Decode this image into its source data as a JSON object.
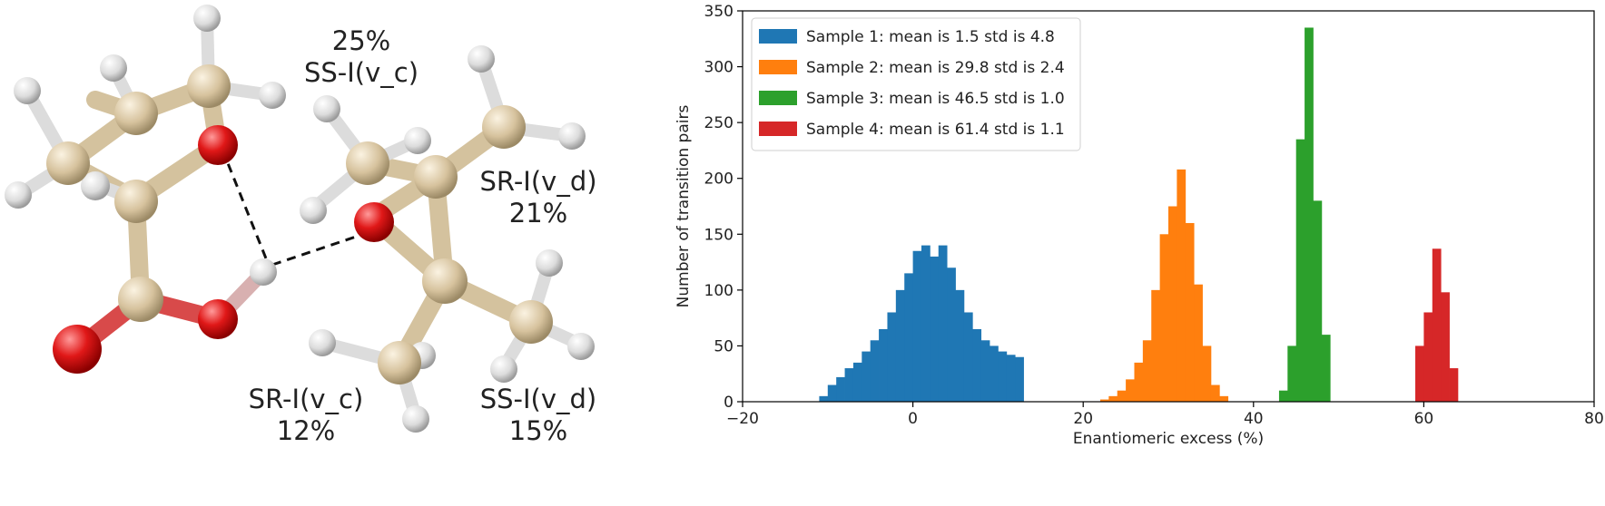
{
  "molecule": {
    "labels": [
      {
        "id": "ss-c-pct",
        "text": "25%"
      },
      {
        "id": "ss-c",
        "text": "SS-I(v_c)"
      },
      {
        "id": "sr-d",
        "text": "SR-I(v_d)"
      },
      {
        "id": "sr-d-pct",
        "text": "21%"
      },
      {
        "id": "sr-c",
        "text": "SR-I(v_c)"
      },
      {
        "id": "sr-c-pct",
        "text": "12%"
      },
      {
        "id": "ss-d",
        "text": "SS-I(v_d)"
      },
      {
        "id": "ss-d-pct",
        "text": "15%"
      }
    ],
    "colors": {
      "carbon": "#d9c5a0",
      "oxygen": "#e01818",
      "hydrogen": "#e2e2e2",
      "hbond": "#111111"
    }
  },
  "chart_data": {
    "type": "histogram",
    "xlabel": "Enantiomeric excess (%)",
    "ylabel": "Number of transition pairs",
    "xlim": [
      -20,
      80
    ],
    "ylim": [
      0,
      350
    ],
    "xticks": [
      -20,
      0,
      20,
      40,
      60,
      80
    ],
    "yticks": [
      0,
      50,
      100,
      150,
      200,
      250,
      300,
      350
    ],
    "legend_position": "top-left",
    "grid": false,
    "series": [
      {
        "name": "Sample 1: mean is 1.5 std is 4.8",
        "color": "#1f77b4",
        "bin_edges": [
          -11,
          -10,
          -9,
          -8,
          -7,
          -6,
          -5,
          -4,
          -3,
          -2,
          -1,
          0,
          1,
          2,
          3,
          4,
          5,
          6,
          7,
          8,
          9,
          10,
          11,
          12,
          13
        ],
        "counts": [
          5,
          15,
          22,
          30,
          35,
          45,
          55,
          65,
          80,
          100,
          115,
          135,
          140,
          130,
          140,
          120,
          100,
          80,
          65,
          55,
          50,
          45,
          42,
          40
        ]
      },
      {
        "name": "Sample 2: mean is 29.8 std is 2.4",
        "color": "#ff7f0e",
        "bin_edges": [
          22,
          23,
          24,
          25,
          26,
          27,
          28,
          29,
          30,
          31,
          32,
          33,
          34,
          35,
          36,
          37
        ],
        "counts": [
          2,
          5,
          10,
          20,
          35,
          55,
          100,
          150,
          175,
          208,
          160,
          105,
          50,
          15,
          5
        ]
      },
      {
        "name": "Sample 3: mean is 46.5 std is 1.0",
        "color": "#2ca02c",
        "bin_edges": [
          43,
          44,
          45,
          46,
          47,
          48,
          49
        ],
        "counts": [
          10,
          50,
          235,
          335,
          180,
          60
        ]
      },
      {
        "name": "Sample 4: mean is 61.4 std is 1.1",
        "color": "#d62728",
        "bin_edges": [
          59,
          60,
          61,
          62,
          63,
          64
        ],
        "counts": [
          50,
          80,
          137,
          98,
          30
        ]
      }
    ]
  }
}
